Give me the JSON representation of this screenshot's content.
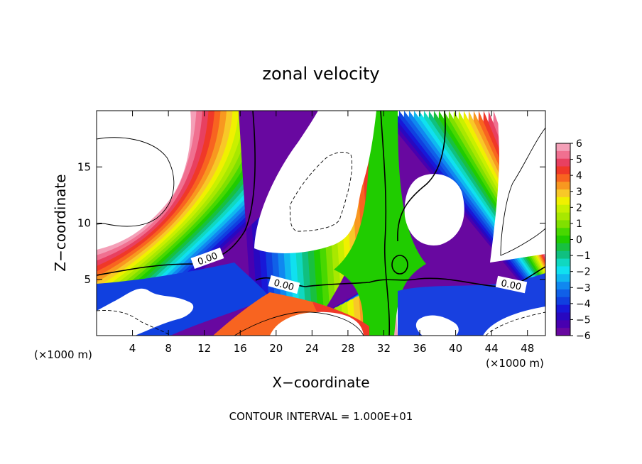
{
  "chart_data": {
    "type": "heatmap",
    "title": "zonal velocity",
    "xlabel": "X−coordinate",
    "ylabel": "Z−coordinate",
    "x_unit_left": "(×1000 m)",
    "x_unit_right": "(×1000 m)",
    "footer": "CONTOUR INTERVAL = 1.000E+01",
    "xlim": [
      0,
      50
    ],
    "ylim": [
      0,
      20
    ],
    "x_ticks": [
      4,
      8,
      12,
      16,
      20,
      24,
      28,
      32,
      36,
      40,
      44,
      48
    ],
    "y_ticks": [
      5,
      10,
      15
    ],
    "contour_labels": [
      "0.00",
      "0.00",
      "0.00"
    ],
    "colorbar": {
      "min": -6,
      "max": 6,
      "labels": [
        "6",
        "5",
        "4",
        "3",
        "2",
        "1",
        "0",
        "−1",
        "−2",
        "−3",
        "−4",
        "−5",
        "−6"
      ],
      "colors": [
        "#f4a0b8",
        "#f07090",
        "#e84060",
        "#f03828",
        "#f86420",
        "#f89820",
        "#f8c828",
        "#f0f000",
        "#c8f000",
        "#a8e800",
        "#80e000",
        "#48d800",
        "#20cc00",
        "#18c040",
        "#10c080",
        "#10d8c0",
        "#10e0f0",
        "#10b8f0",
        "#1088f0",
        "#1060e8",
        "#1040e0",
        "#1818d8",
        "#2808c0",
        "#4800b0",
        "#6808a0"
      ]
    }
  }
}
